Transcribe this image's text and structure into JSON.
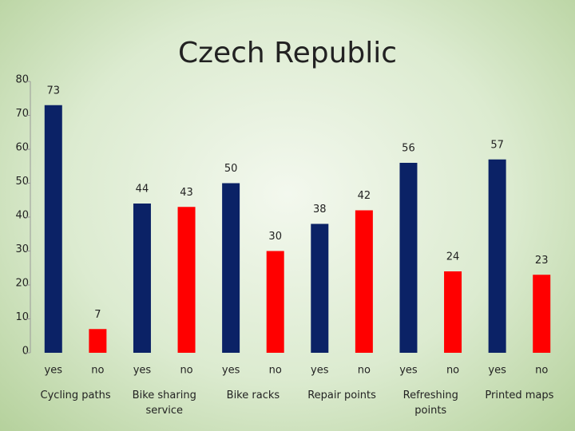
{
  "chart_data": {
    "type": "bar",
    "title": "Czech Republic",
    "categories": [
      "yes",
      "no",
      "yes",
      "no",
      "yes",
      "no",
      "yes",
      "no",
      "yes",
      "no",
      "yes",
      "no"
    ],
    "values": [
      73,
      7,
      44,
      43,
      50,
      30,
      38,
      42,
      56,
      24,
      57,
      23
    ],
    "groups": [
      "Cycling paths",
      "Bike sharing service",
      "Bike racks",
      "Repair points",
      "Refreshing points",
      "Printed maps"
    ],
    "colors": [
      "#0b2266",
      "#ff0000"
    ],
    "ylim": [
      0,
      80
    ],
    "yticks": [
      0,
      10,
      20,
      30,
      40,
      50,
      60,
      70,
      80
    ],
    "grid": false
  }
}
